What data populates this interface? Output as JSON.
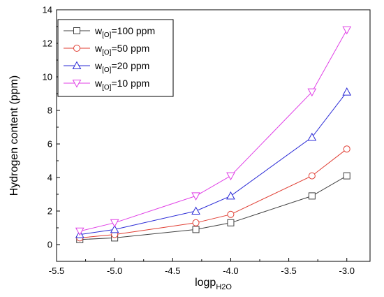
{
  "chart_data": {
    "type": "line",
    "title": "",
    "xlabel": {
      "main": "logp",
      "sub": "H2O"
    },
    "ylabel": "Hydrogen content (ppm)",
    "xlim": [
      -5.5,
      -2.8
    ],
    "ylim": [
      -1,
      14
    ],
    "xticks": [
      -5.5,
      -5.0,
      -4.5,
      -4.0,
      -3.5,
      -3.0
    ],
    "xtick_labels": [
      "-5.5",
      "-5.0",
      "-4.5",
      "-4.0",
      "-3.5",
      "-3.0"
    ],
    "yticks": [
      0,
      2,
      4,
      6,
      8,
      10,
      12,
      14
    ],
    "ytick_labels": [
      "0",
      "2",
      "4",
      "6",
      "8",
      "10",
      "12",
      "14"
    ],
    "grid": false,
    "legend_position": "top-left",
    "x": [
      -5.3,
      -5.0,
      -4.3,
      -4.0,
      -3.3,
      -3.0
    ],
    "series": [
      {
        "name": {
          "pre": "w",
          "sub": "[O]",
          "post": "=100 ppm"
        },
        "marker": "square",
        "color": "#404040",
        "values": [
          0.3,
          0.4,
          0.9,
          1.3,
          2.9,
          4.1
        ]
      },
      {
        "name": {
          "pre": "w",
          "sub": "[O]",
          "post": "=50 ppm"
        },
        "marker": "circle",
        "color": "#e03c31",
        "values": [
          0.4,
          0.6,
          1.3,
          1.8,
          4.1,
          5.7
        ]
      },
      {
        "name": {
          "pre": "w",
          "sub": "[O]",
          "post": "=20 ppm"
        },
        "marker": "triangle-up",
        "color": "#2a2ad6",
        "values": [
          0.6,
          0.9,
          2.0,
          2.9,
          6.4,
          9.1
        ]
      },
      {
        "name": {
          "pre": "w",
          "sub": "[O]",
          "post": "=10 ppm"
        },
        "marker": "triangle-down",
        "color": "#e040e6",
        "values": [
          0.8,
          1.3,
          2.9,
          4.1,
          9.1,
          12.8
        ]
      }
    ]
  }
}
